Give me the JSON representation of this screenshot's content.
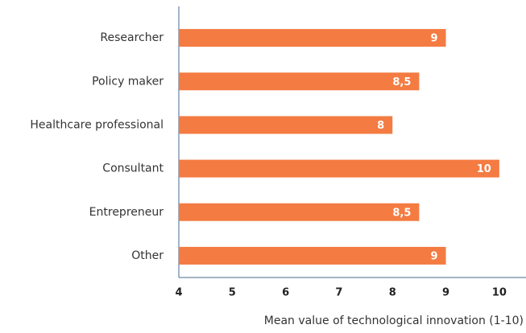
{
  "chart_data": {
    "type": "bar",
    "orientation": "horizontal",
    "categories": [
      "Researcher",
      "Policy maker",
      "Healthcare professional",
      "Consultant",
      "Entrepreneur",
      "Other"
    ],
    "values": [
      9,
      8.5,
      8,
      10,
      8.5,
      9
    ],
    "value_labels": [
      "9",
      "8,5",
      "8",
      "10",
      "8,5",
      "9"
    ],
    "color": "#f47b42",
    "xlabel": "Mean value of technological innovation (1-10)",
    "xlim": [
      4,
      10.5
    ],
    "xticks": [
      4,
      5,
      6,
      7,
      8,
      9,
      10
    ],
    "grid": false
  }
}
